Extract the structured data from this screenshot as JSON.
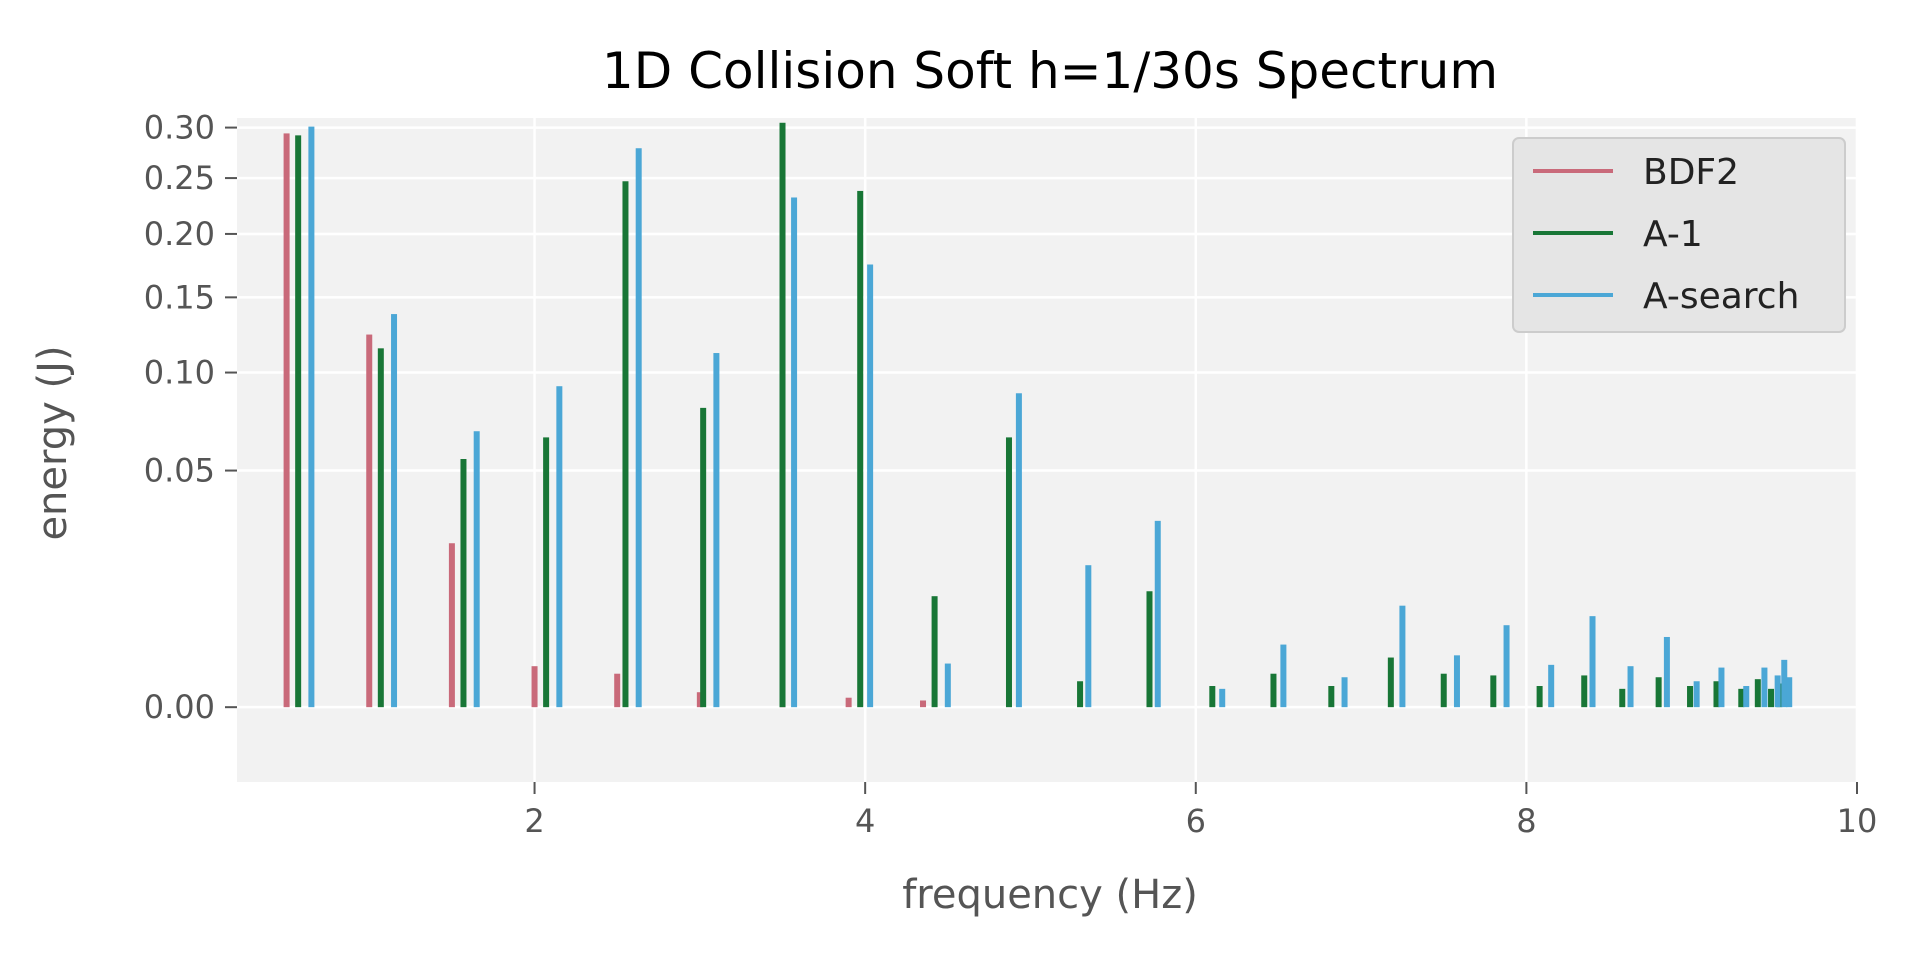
{
  "chart_data": {
    "type": "bar",
    "title": "1D Collision Soft h=1/30s Spectrum",
    "xlabel": "frequency (Hz)",
    "ylabel": "energy (J)",
    "xlim": [
      0.2,
      10
    ],
    "ylim": [
      -0.005,
      0.31
    ],
    "y_scale": "sqrt",
    "xticks": [
      2,
      4,
      6,
      8,
      10
    ],
    "xtick_labels": [
      "2",
      "4",
      "6",
      "8",
      "10"
    ],
    "yticks": [
      0.0,
      0.05,
      0.1,
      0.15,
      0.2,
      0.25,
      0.3
    ],
    "ytick_labels": [
      "0.00",
      "0.05",
      "0.10",
      "0.15",
      "0.20",
      "0.25",
      "0.30"
    ],
    "grid": true,
    "legend_position": "top-right",
    "series": [
      {
        "name": "BDF2",
        "color": "#c96a7a",
        "points": [
          {
            "x": 0.5,
            "y": 0.294
          },
          {
            "x": 1.0,
            "y": 0.124
          },
          {
            "x": 1.5,
            "y": 0.024
          },
          {
            "x": 2.0,
            "y": 0.0015
          },
          {
            "x": 2.5,
            "y": 0.001
          },
          {
            "x": 3.0,
            "y": 0.0002
          },
          {
            "x": 3.5,
            "y": 5e-05
          },
          {
            "x": 3.9,
            "y": 8e-05
          },
          {
            "x": 4.35,
            "y": 4e-05
          }
        ]
      },
      {
        "name": "A-1",
        "color": "#187636",
        "points": [
          {
            "x": 0.57,
            "y": 0.292
          },
          {
            "x": 1.07,
            "y": 0.115
          },
          {
            "x": 1.57,
            "y": 0.055
          },
          {
            "x": 2.07,
            "y": 0.065
          },
          {
            "x": 2.55,
            "y": 0.247
          },
          {
            "x": 3.02,
            "y": 0.08
          },
          {
            "x": 3.5,
            "y": 0.305
          },
          {
            "x": 3.97,
            "y": 0.238
          },
          {
            "x": 4.42,
            "y": 0.011
          },
          {
            "x": 4.87,
            "y": 0.065
          },
          {
            "x": 5.3,
            "y": 0.0006
          },
          {
            "x": 5.72,
            "y": 0.012
          },
          {
            "x": 6.1,
            "y": 0.0004
          },
          {
            "x": 6.47,
            "y": 0.001
          },
          {
            "x": 6.82,
            "y": 0.0004
          },
          {
            "x": 7.18,
            "y": 0.0022
          },
          {
            "x": 7.5,
            "y": 0.001
          },
          {
            "x": 7.8,
            "y": 0.0009
          },
          {
            "x": 8.08,
            "y": 0.0004
          },
          {
            "x": 8.35,
            "y": 0.0009
          },
          {
            "x": 8.58,
            "y": 0.0003
          },
          {
            "x": 8.8,
            "y": 0.0008
          },
          {
            "x": 8.99,
            "y": 0.0004
          },
          {
            "x": 9.15,
            "y": 0.0006
          },
          {
            "x": 9.3,
            "y": 0.0003
          },
          {
            "x": 9.4,
            "y": 0.0007
          },
          {
            "x": 9.48,
            "y": 0.0003
          },
          {
            "x": 9.53,
            "y": 0.0005
          }
        ]
      },
      {
        "name": "A-search",
        "color": "#4ba7d6",
        "points": [
          {
            "x": 0.65,
            "y": 0.301
          },
          {
            "x": 1.15,
            "y": 0.138
          },
          {
            "x": 1.65,
            "y": 0.068
          },
          {
            "x": 2.15,
            "y": 0.092
          },
          {
            "x": 2.63,
            "y": 0.279
          },
          {
            "x": 3.1,
            "y": 0.112
          },
          {
            "x": 3.57,
            "y": 0.232
          },
          {
            "x": 4.03,
            "y": 0.175
          },
          {
            "x": 4.5,
            "y": 0.0017
          },
          {
            "x": 4.93,
            "y": 0.088
          },
          {
            "x": 5.35,
            "y": 0.018
          },
          {
            "x": 5.77,
            "y": 0.031
          },
          {
            "x": 6.16,
            "y": 0.0003
          },
          {
            "x": 6.53,
            "y": 0.0035
          },
          {
            "x": 6.9,
            "y": 0.0008
          },
          {
            "x": 7.25,
            "y": 0.0092
          },
          {
            "x": 7.58,
            "y": 0.0024
          },
          {
            "x": 7.88,
            "y": 0.006
          },
          {
            "x": 8.15,
            "y": 0.0016
          },
          {
            "x": 8.4,
            "y": 0.0074
          },
          {
            "x": 8.63,
            "y": 0.0015
          },
          {
            "x": 8.85,
            "y": 0.0044
          },
          {
            "x": 9.03,
            "y": 0.0006
          },
          {
            "x": 9.18,
            "y": 0.0014
          },
          {
            "x": 9.33,
            "y": 0.0004
          },
          {
            "x": 9.44,
            "y": 0.0014
          },
          {
            "x": 9.52,
            "y": 0.0009
          },
          {
            "x": 9.56,
            "y": 0.002
          },
          {
            "x": 9.59,
            "y": 0.0008
          }
        ]
      }
    ]
  }
}
